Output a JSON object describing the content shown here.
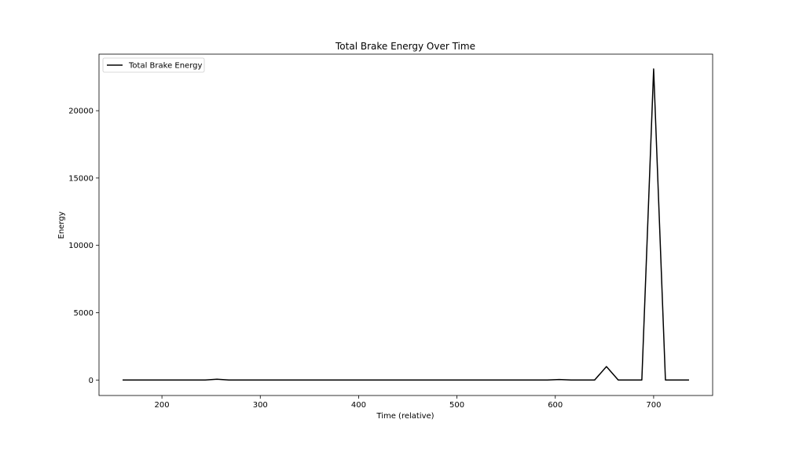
{
  "chart_data": {
    "type": "line",
    "title": "Total Brake Energy Over Time",
    "xlabel": "Time (relative)",
    "ylabel": "Energy",
    "xlim": [
      136,
      760
    ],
    "ylim": [
      -1150,
      24200
    ],
    "xticks": [
      200,
      300,
      400,
      500,
      600,
      700
    ],
    "yticks": [
      0,
      5000,
      10000,
      15000,
      20000
    ],
    "grid": false,
    "legend_position": "top-left",
    "series": [
      {
        "name": "Total Brake Energy",
        "color": "#000000",
        "x": [
          160,
          172,
          184,
          196,
          208,
          220,
          232,
          244,
          256,
          268,
          280,
          292,
          304,
          316,
          328,
          340,
          352,
          364,
          376,
          388,
          400,
          412,
          424,
          436,
          448,
          460,
          472,
          484,
          496,
          508,
          520,
          532,
          544,
          556,
          568,
          580,
          592,
          604,
          616,
          628,
          640,
          652,
          664,
          676,
          688,
          700,
          712,
          724,
          736
        ],
        "y": [
          0,
          0,
          0,
          0,
          0,
          0,
          0,
          0,
          60,
          0,
          0,
          0,
          0,
          0,
          0,
          0,
          0,
          0,
          0,
          0,
          0,
          0,
          0,
          0,
          0,
          0,
          0,
          0,
          0,
          0,
          0,
          0,
          0,
          0,
          0,
          0,
          0,
          40,
          0,
          0,
          0,
          1000,
          0,
          0,
          0,
          23100,
          0,
          0,
          0
        ]
      }
    ]
  }
}
